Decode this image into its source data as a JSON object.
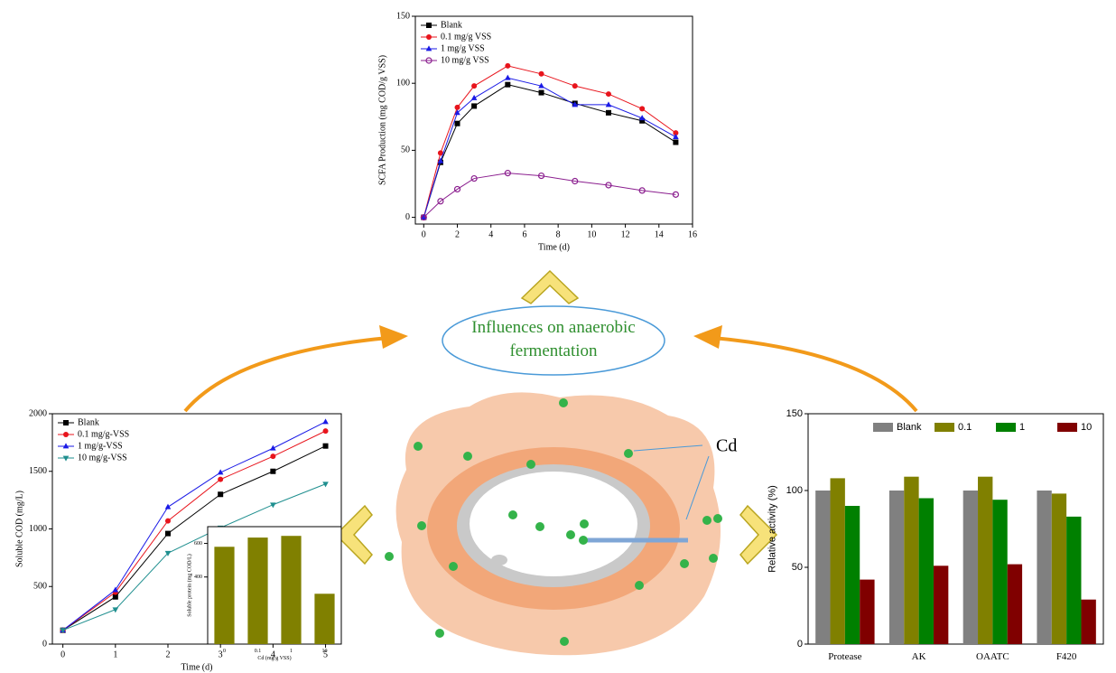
{
  "chart_data": [
    {
      "type": "line",
      "ylabel": "SCFA Production (mg COD/g VSS)",
      "xlabel": "Time (d)",
      "x": [
        0,
        1,
        2,
        3,
        5,
        7,
        9,
        11,
        13,
        15
      ],
      "xlim": [
        -0.5,
        16
      ],
      "xticks": [
        0,
        2,
        4,
        6,
        8,
        10,
        12,
        14,
        16
      ],
      "ylim": [
        -5,
        150
      ],
      "yticks": [
        0,
        50,
        100,
        150
      ],
      "legend": "upper left",
      "series": [
        {
          "name": "Blank",
          "color": "#000000",
          "marker": "square",
          "values": [
            0,
            41,
            70,
            83,
            99,
            93,
            85,
            78,
            72,
            56
          ]
        },
        {
          "name": "0.1 mg/g VSS",
          "color": "#e8141c",
          "marker": "circle",
          "values": [
            0,
            48,
            82,
            98,
            113,
            107,
            98,
            92,
            81,
            63
          ]
        },
        {
          "name": "1    mg/g VSS",
          "color": "#1a1ae6",
          "marker": "triangle",
          "values": [
            0,
            42,
            78,
            89,
            104,
            98,
            84,
            84,
            74,
            60
          ]
        },
        {
          "name": "10 mg/g VSS",
          "color": "#8b1f8f",
          "marker": "circle-open",
          "values": [
            0,
            12,
            21,
            29,
            33,
            31,
            27,
            24,
            20,
            17
          ]
        }
      ]
    },
    {
      "type": "line",
      "ylabel": "Soluble COD (mg/L)",
      "xlabel": "Time (d)",
      "x": [
        0,
        1,
        2,
        3,
        4,
        5
      ],
      "xlim": [
        -0.2,
        5.3
      ],
      "xticks": [
        0,
        1,
        2,
        3,
        4,
        5
      ],
      "ylim": [
        0,
        2000
      ],
      "yticks": [
        0,
        500,
        1000,
        1500,
        2000
      ],
      "legend": "upper left",
      "series": [
        {
          "name": "Blank",
          "color": "#000000",
          "marker": "square",
          "values": [
            120,
            410,
            960,
            1300,
            1500,
            1720
          ]
        },
        {
          "name": "0.1 mg/g-VSS",
          "color": "#e8141c",
          "marker": "circle",
          "values": [
            120,
            450,
            1070,
            1430,
            1630,
            1850
          ]
        },
        {
          "name": "1    mg/g-VSS",
          "color": "#1a1ae6",
          "marker": "triangle",
          "values": [
            120,
            470,
            1190,
            1490,
            1700,
            1930
          ]
        },
        {
          "name": "10 mg/g-VSS",
          "color": "#1f8f8f",
          "marker": "triangle-down",
          "values": [
            120,
            300,
            790,
            1010,
            1210,
            1390
          ]
        }
      ]
    },
    {
      "type": "bar",
      "ylabel": "Soluble protein (mg COD/L)",
      "xlabel": "Cd (mg/g VSS)",
      "categories": [
        "0",
        "0.1",
        "1",
        "10"
      ],
      "values": [
        580,
        635,
        645,
        300
      ],
      "color": "#808000",
      "ylim": [
        0,
        700
      ],
      "yticks": [
        400,
        600
      ]
    },
    {
      "type": "bar",
      "ylabel": "Relative activity (%)",
      "categories": [
        "Protease",
        "AK",
        "OAATC",
        "F420"
      ],
      "ylim": [
        0,
        150
      ],
      "yticks": [
        0,
        50,
        100,
        150
      ],
      "legend": "upper center",
      "series": [
        {
          "name": "Blank",
          "color": "#808080",
          "values": [
            100,
            100,
            100,
            100
          ]
        },
        {
          "name": "0.1",
          "color": "#808000",
          "values": [
            108,
            109,
            109,
            98
          ]
        },
        {
          "name": "1",
          "color": "#008000",
          "values": [
            90,
            95,
            94,
            83
          ]
        },
        {
          "name": "10",
          "color": "#800000",
          "values": [
            42,
            51,
            52,
            29
          ]
        }
      ]
    }
  ],
  "diagram": {
    "center_label": "Influences on anaerobic fermentation",
    "cd_label": "Cd"
  }
}
